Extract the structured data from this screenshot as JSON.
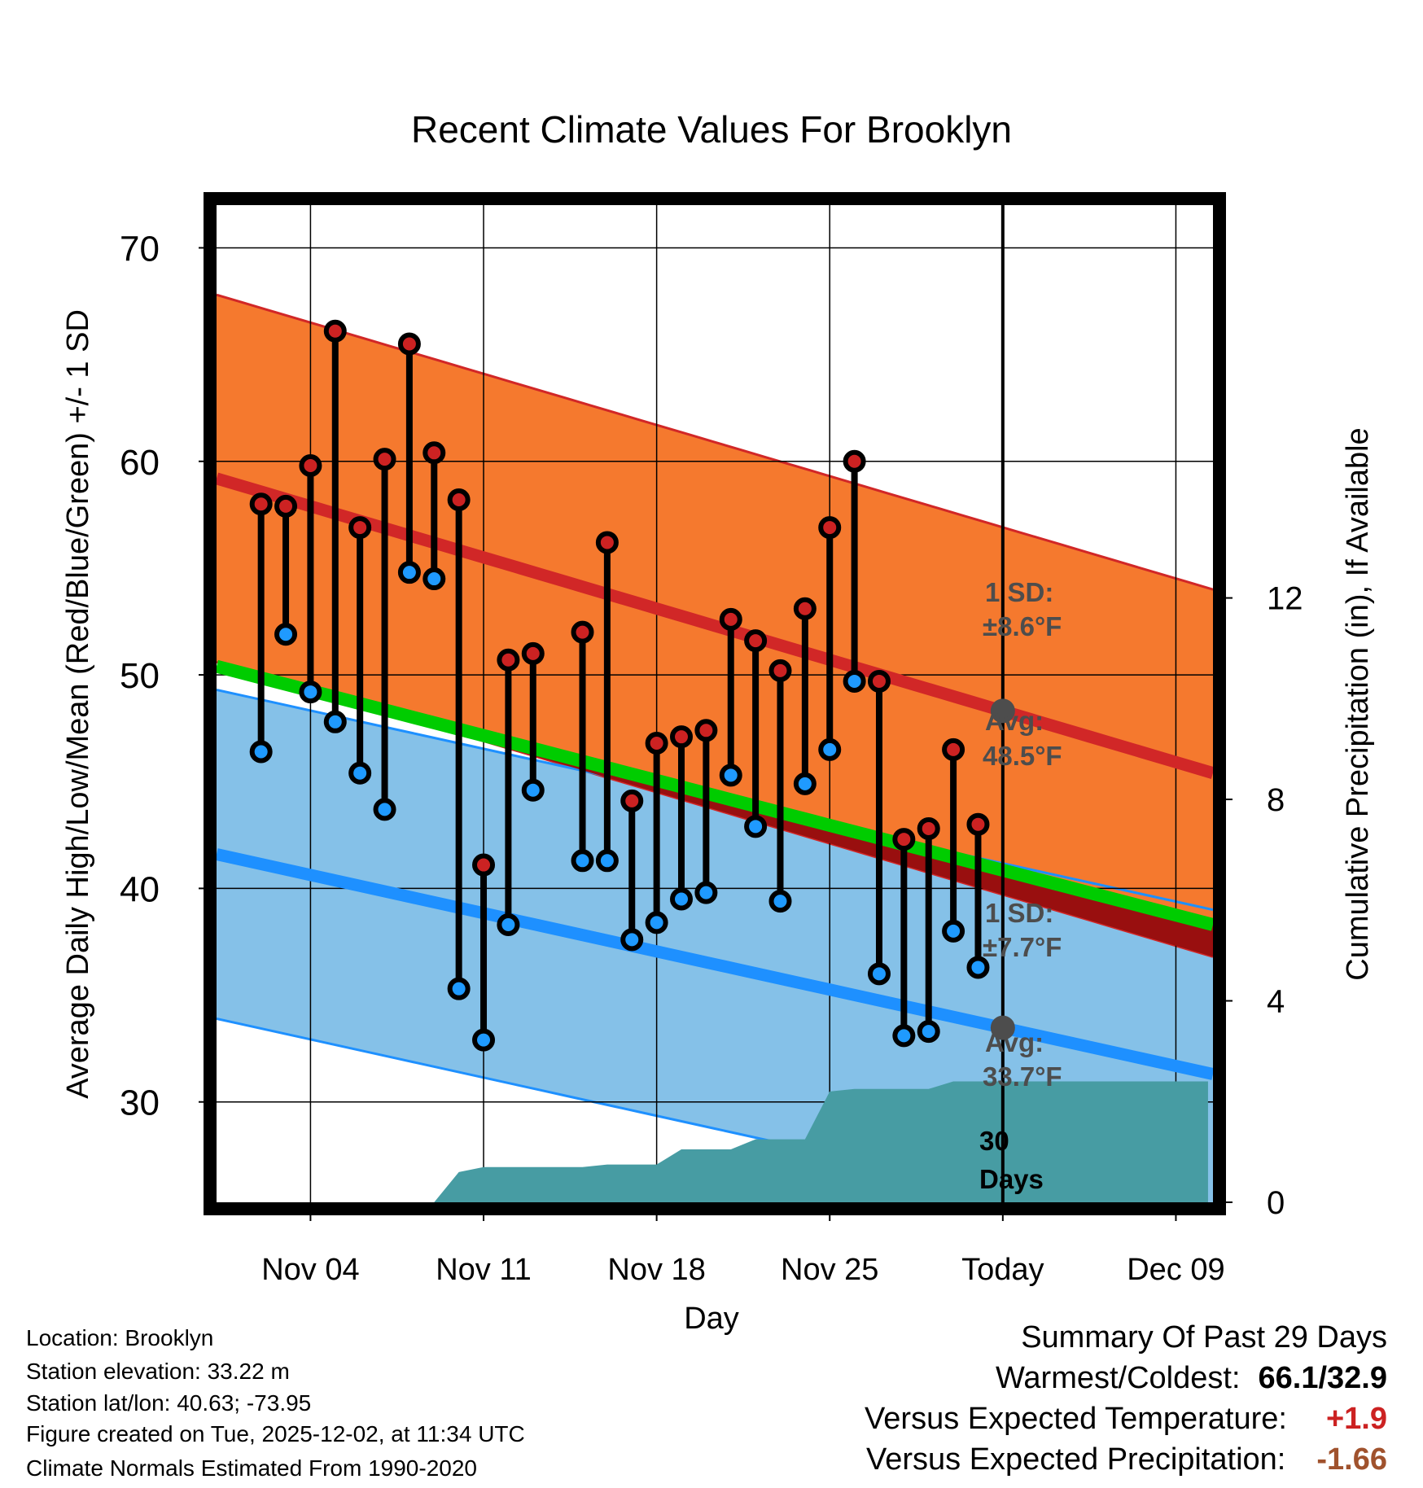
{
  "chart_data": {
    "type": "line",
    "title": "Recent Climate Values For Brooklyn",
    "xlabel": "Day",
    "ylabel": "Average Daily High/Low/Mean (Red/Blue/Green) +/- 1 SD",
    "y2label": "Cumulative Precipitation (in), If Available",
    "ylim": [
      25.3,
      72
    ],
    "y2lim": [
      0,
      19.8
    ],
    "xlim": [
      -1.8,
      38.5
    ],
    "x_ticks": [
      {
        "day": 2,
        "label": "Nov 04"
      },
      {
        "day": 9,
        "label": "Nov 11"
      },
      {
        "day": 16,
        "label": "Nov 18"
      },
      {
        "day": 23,
        "label": "Nov 25"
      },
      {
        "day": 30,
        "label": "Today"
      },
      {
        "day": 37,
        "label": "Dec 09"
      }
    ],
    "y_ticks": [
      30,
      40,
      50,
      60,
      70
    ],
    "y2_ticks": [
      0,
      4,
      8,
      12
    ],
    "today_day": 30,
    "normals": {
      "high_avg": {
        "start": 59.2,
        "end": 45.4
      },
      "high_sd": 8.6,
      "low_avg": {
        "start": 41.6,
        "end": 31.3
      },
      "low_sd": 7.7,
      "mean_avg": {
        "start": 50.4,
        "end": 38.3
      }
    },
    "days": [
      0,
      1,
      2,
      3,
      4,
      5,
      6,
      7,
      8,
      9,
      10,
      11,
      13,
      14,
      15,
      16,
      17,
      18,
      19,
      20,
      21,
      22,
      23,
      24,
      25,
      26,
      27,
      28,
      29
    ],
    "highs": [
      58.0,
      57.9,
      59.8,
      66.1,
      56.9,
      60.1,
      65.5,
      60.4,
      58.2,
      41.1,
      50.7,
      51.0,
      52.0,
      56.2,
      44.1,
      46.8,
      47.1,
      47.4,
      52.6,
      51.6,
      50.2,
      53.1,
      56.9,
      60.0,
      49.7,
      42.3,
      42.8,
      46.5,
      43.0
    ],
    "lows": [
      46.4,
      51.9,
      49.2,
      47.8,
      45.4,
      43.7,
      54.8,
      54.5,
      35.3,
      32.9,
      38.3,
      44.6,
      41.3,
      41.3,
      37.6,
      38.4,
      39.5,
      39.8,
      45.3,
      42.9,
      39.4,
      44.9,
      46.5,
      49.7,
      36.0,
      33.1,
      33.3,
      38.0,
      36.3
    ],
    "precip_cumulative": [
      [
        0,
        0
      ],
      [
        7,
        0
      ],
      [
        8,
        0.6
      ],
      [
        9,
        0.7
      ],
      [
        13,
        0.7
      ],
      [
        14,
        0.75
      ],
      [
        16,
        0.75
      ],
      [
        17,
        1.05
      ],
      [
        19,
        1.05
      ],
      [
        20,
        1.25
      ],
      [
        22,
        1.25
      ],
      [
        23,
        2.2
      ],
      [
        24,
        2.25
      ],
      [
        27,
        2.25
      ],
      [
        28,
        2.4
      ],
      [
        38.3,
        2.4
      ]
    ],
    "precip_start_day": 7,
    "annotations": {
      "high_sd_label": "1 SD:",
      "high_sd_value": "±8.6°F",
      "high_avg_label": "Avg:",
      "high_avg_value": "48.5°F",
      "low_sd_label": "1 SD:",
      "low_sd_value": "±7.7°F",
      "low_avg_label": "Avg:",
      "low_avg_value": "33.7°F",
      "days_num": "30",
      "days_word": "Days"
    }
  },
  "info": {
    "location": "Location: Brooklyn",
    "elevation": "Station elevation: 33.22 m",
    "latlon": "Station lat/lon: 40.63; -73.95",
    "created": "Figure created on Tue, 2025-12-02, at 11:34 UTC",
    "normals_period": "Climate Normals Estimated From 1990-2020"
  },
  "summary": {
    "title": "Summary Of Past 29 Days",
    "warm_cold_label": "Warmest/Coldest:",
    "warm_cold_value": "66.1/32.9",
    "temp_label": "Versus Expected Temperature:",
    "temp_value": "+1.9",
    "precip_label": "Versus Expected Precipitation:",
    "precip_value": "-1.66"
  },
  "colors": {
    "high_band": "#f5792e",
    "high_line": "#d12727",
    "low_band": "#85c1e8",
    "low_line": "#1e90ff",
    "mean_line": "#00cc00",
    "mean_dark": "#990f0f",
    "precip": "#479ca3",
    "high_dot": "#cc2222",
    "low_dot": "#1f9aff",
    "temp_value": "#cc2222",
    "precip_value": "#a0522d"
  }
}
